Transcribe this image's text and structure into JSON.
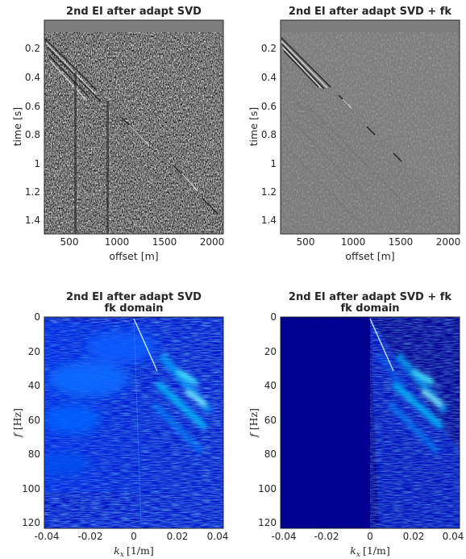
{
  "chart_data": [
    {
      "type": "heatmap",
      "title": "2nd EI  after adapt SVD",
      "xlabel": "offset [m]",
      "ylabel": "time [s]",
      "xlim": [
        250,
        2120
      ],
      "ylim": [
        1.52,
        0.04
      ],
      "xticks": [
        "500",
        "1000",
        "1500",
        "2000"
      ],
      "yticks": [
        "0.2",
        "0.4",
        "0.6",
        "0.8",
        "1",
        "1.2",
        "1.4"
      ],
      "colormap": "gray",
      "grid": false
    },
    {
      "type": "heatmap",
      "title": "2nd EI  after adapt SVD + fk",
      "xlabel": "offset [m]",
      "ylabel": "time [s]",
      "xlim": [
        250,
        2120
      ],
      "ylim": [
        1.52,
        0.04
      ],
      "xticks": [
        "500",
        "1000",
        "1500",
        "2000"
      ],
      "yticks": [
        "0.2",
        "0.4",
        "0.6",
        "0.8",
        "1",
        "1.2",
        "1.4"
      ],
      "colormap": "gray",
      "grid": false
    },
    {
      "type": "heatmap",
      "title": "2nd EI  after adapt SVD",
      "subtitle": "fk domain",
      "xlabel_main": "k",
      "xlabel_sub": "x",
      "xlabel_unit": "[1/m]",
      "ylabel_main": "f",
      "ylabel_unit": "[Hz]",
      "xlim": [
        -0.04,
        0.04
      ],
      "ylim": [
        125,
        0
      ],
      "xticks": [
        "-0.04",
        "-0.02",
        "0",
        "0.02",
        "0.04"
      ],
      "yticks": [
        "0",
        "20",
        "40",
        "60",
        "80",
        "100",
        "120"
      ],
      "colormap": "jet",
      "grid": false
    },
    {
      "type": "heatmap",
      "title": "2nd EI  after adapt SVD + fk",
      "subtitle": "fk domain",
      "xlabel_main": "k",
      "xlabel_sub": "x",
      "xlabel_unit": "[1/m]",
      "ylabel_main": "f",
      "ylabel_unit": "[Hz]",
      "xlim": [
        -0.04,
        0.04
      ],
      "ylim": [
        125,
        0
      ],
      "xticks": [
        "-0.04",
        "-0.02",
        "0",
        "0.02",
        "0.04"
      ],
      "yticks": [
        "0",
        "20",
        "40",
        "60",
        "80",
        "100",
        "120"
      ],
      "colormap": "jet",
      "grid": false
    }
  ]
}
